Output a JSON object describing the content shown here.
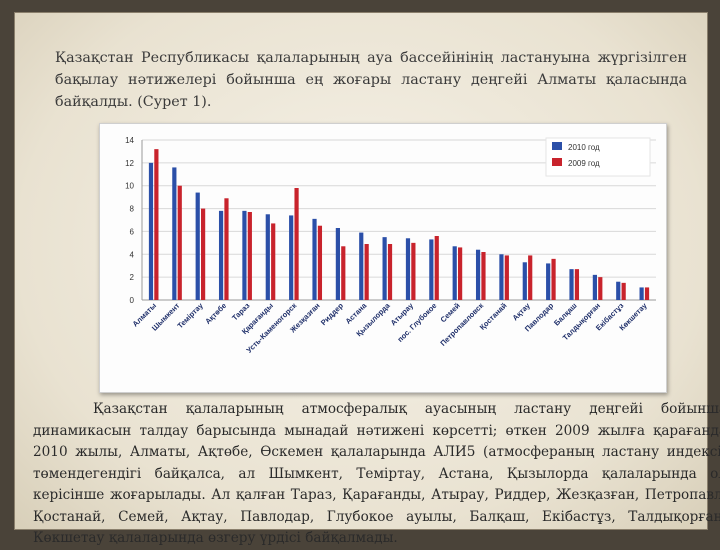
{
  "intro_text": "Қазақстан Республикасы қалаларының ауа бассейінінің ластануына жүргізілген бақылау нәтижелері бойынша ең жоғары ластану деңгейі Алматы қаласында байқалды. (Сурет 1).",
  "body_text": "Қазақстан қалаларының атмосфералық ауасының ластану деңгейі бойынша динамикасын талдау барысында мынадай нәтижені көрсетті; өткен 2009 жылға қарағанда 2010 жылы, Алматы, Ақтөбе, Өскемен қалаларында АЛИ5 (атмосфераның ластану индексі) төмендегендігі байқалса, ал Шымкент, Теміртау, Астана, Қызылорда қалаларында ол керісінше жоғарылады. Ал қалған Тараз, Қарағанды, Атырау, Риддер, Жезқазған, Петропавл, Қостанай, Семей, Ақтау, Павлодар, Глубокое ауылы, Балқаш, Екібастұз, Талдықорған, Көкшетау қалаларында өзгеру үрдісі байқалмады.",
  "chart_data": {
    "type": "bar",
    "categories": [
      "Алматы",
      "Шымкент",
      "Теміртау",
      "Ақтөбе",
      "Тараз",
      "Қарағанды",
      "Усть-Каменогорск",
      "Жезқазған",
      "Риддер",
      "Астана",
      "Қызылорда",
      "Атырау",
      "пос. Глубокое",
      "Семей",
      "Петропавловск",
      "Қостанай",
      "Ақтау",
      "Павлодар",
      "Балқаш",
      "Талдықорған",
      "Екібастұз",
      "Көкшетау"
    ],
    "series": [
      {
        "name": "2010 год",
        "color": "#2b4fa8",
        "values": [
          12.0,
          11.6,
          9.4,
          7.8,
          7.8,
          7.5,
          7.4,
          7.1,
          6.3,
          5.9,
          5.5,
          5.4,
          5.3,
          4.7,
          4.4,
          4.0,
          3.3,
          3.2,
          2.7,
          2.2,
          1.6,
          1.1
        ]
      },
      {
        "name": "2009 год",
        "color": "#c8232c",
        "values": [
          13.2,
          10.0,
          8.0,
          8.9,
          7.7,
          6.7,
          9.8,
          6.5,
          4.7,
          4.9,
          4.9,
          5.0,
          5.6,
          4.6,
          4.2,
          3.9,
          3.9,
          3.6,
          2.7,
          2.0,
          1.5,
          1.1
        ]
      }
    ],
    "yticks": [
      0,
      2,
      4,
      6,
      8,
      10,
      12,
      14
    ],
    "ylim": [
      0,
      14
    ],
    "grid": true,
    "legend_position": "top-right"
  }
}
